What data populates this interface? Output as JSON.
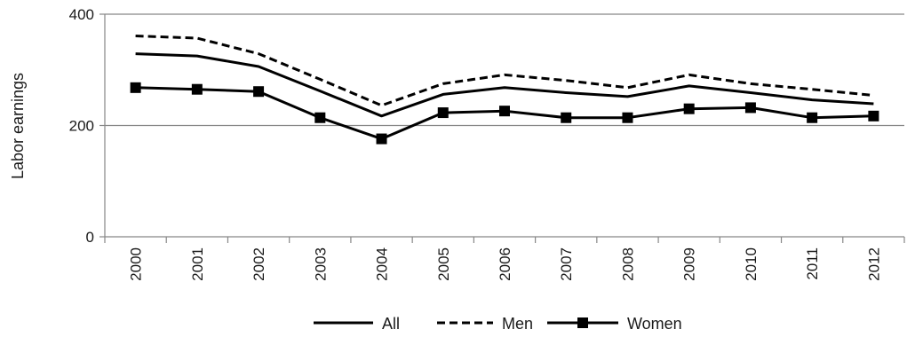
{
  "chart_data": {
    "type": "line",
    "title": "",
    "xlabel": "",
    "ylabel": "Labor earnings",
    "ylim": [
      0,
      400
    ],
    "yticks": [
      0,
      200,
      400
    ],
    "grid": true,
    "legend_position": "bottom",
    "x": [
      "2000",
      "2001",
      "2002",
      "2003",
      "2004",
      "2005",
      "2006",
      "2007",
      "2008",
      "2009",
      "2010",
      "2011",
      "2012"
    ],
    "series": [
      {
        "name": "All",
        "style": "solid",
        "marker": "none",
        "values": [
          329,
          325,
          306,
          262,
          217,
          256,
          268,
          259,
          252,
          271,
          259,
          246,
          239
        ]
      },
      {
        "name": "Men",
        "style": "dashed",
        "marker": "none",
        "values": [
          361,
          357,
          329,
          283,
          236,
          275,
          291,
          281,
          268,
          291,
          275,
          265,
          254
        ]
      },
      {
        "name": "Women",
        "style": "solid",
        "marker": "square",
        "values": [
          268,
          265,
          261,
          214,
          176,
          223,
          226,
          214,
          214,
          230,
          232,
          214,
          217
        ]
      }
    ],
    "colors": {
      "line": "#000000",
      "grid": "#878787",
      "axis": "#878787"
    }
  }
}
